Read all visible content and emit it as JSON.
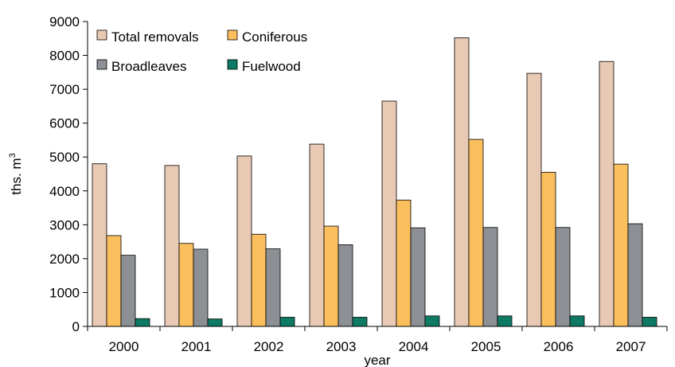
{
  "chart_data": {
    "type": "bar",
    "title": "",
    "xlabel": "year",
    "ylabel": "ths. m",
    "ylabel_superscript": "3",
    "ylim": [
      0,
      9000
    ],
    "yticks": [
      "0",
      "1000",
      "2000",
      "3000",
      "4000",
      "5000",
      "6000",
      "7000",
      "8000",
      "9000"
    ],
    "categories": [
      "2000",
      "2001",
      "2002",
      "2003",
      "2004",
      "2005",
      "2006",
      "2007"
    ],
    "series": [
      {
        "name": "Total removals",
        "color": "#e8c9b3",
        "values": [
          4800,
          4750,
          5030,
          5380,
          6650,
          8520,
          7470,
          7820
        ]
      },
      {
        "name": "Coniferous",
        "color": "#fbbf5e",
        "values": [
          2680,
          2450,
          2720,
          2960,
          3730,
          5520,
          4550,
          4790
        ]
      },
      {
        "name": "Broadleaves",
        "color": "#8c8f93",
        "values": [
          2100,
          2280,
          2290,
          2410,
          2910,
          2920,
          2920,
          3030
        ]
      },
      {
        "name": "Fuelwood",
        "color": "#0e7a64",
        "values": [
          230,
          220,
          270,
          270,
          310,
          310,
          310,
          270
        ]
      }
    ],
    "legend_position": "top-left",
    "grid": false
  }
}
